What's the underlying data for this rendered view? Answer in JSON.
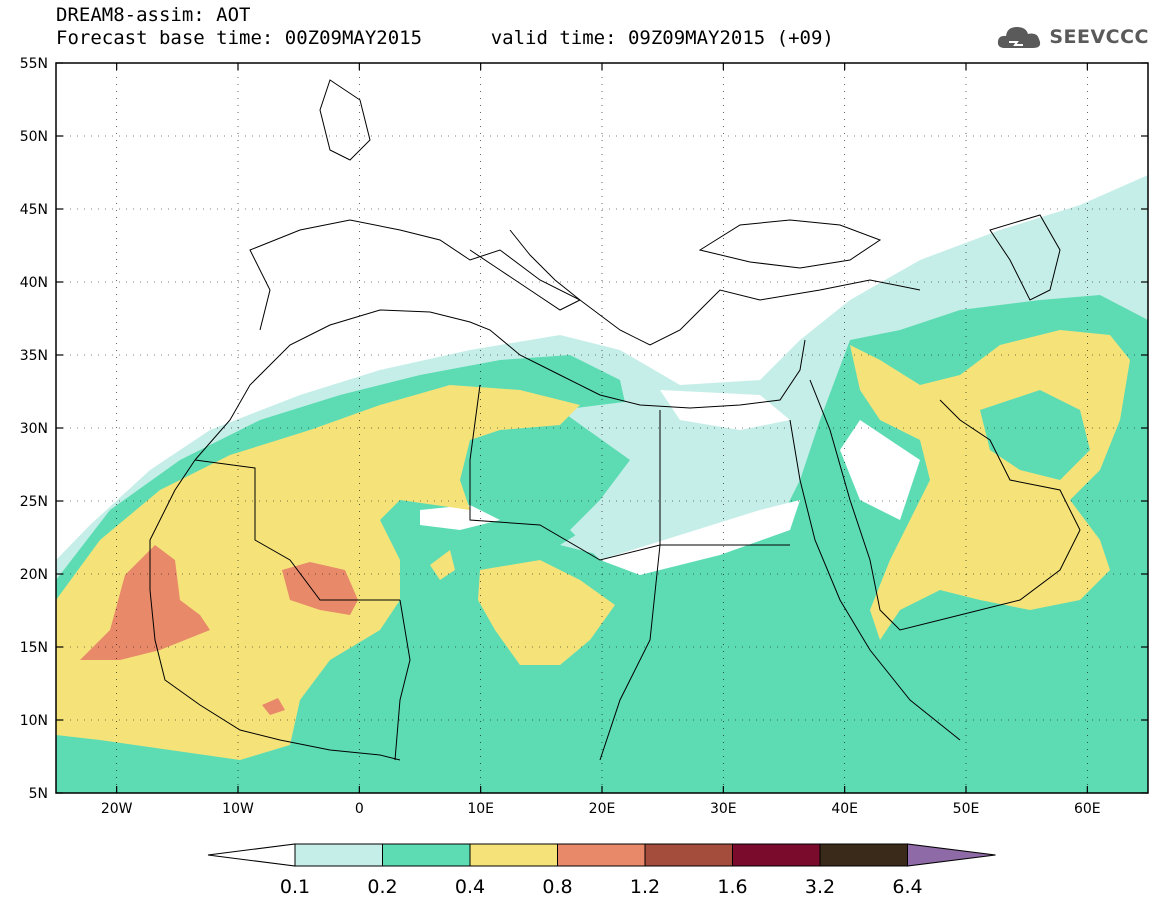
{
  "header": {
    "title": "DREAM8-assim: AOT",
    "base_time_label": "Forecast base time: 00Z09MAY2015",
    "valid_time_label": "valid time: 09Z09MAY2015 (+09)"
  },
  "logo": {
    "text": "SEEVCCC",
    "icon": "cloud-icon"
  },
  "map": {
    "lon_range": [
      -25,
      65
    ],
    "lat_range": [
      5,
      55
    ],
    "lat_ticks": [
      {
        "value": 55,
        "label": "55N"
      },
      {
        "value": 50,
        "label": "50N"
      },
      {
        "value": 45,
        "label": "45N"
      },
      {
        "value": 40,
        "label": "40N"
      },
      {
        "value": 35,
        "label": "35N"
      },
      {
        "value": 30,
        "label": "30N"
      },
      {
        "value": 25,
        "label": "25N"
      },
      {
        "value": 20,
        "label": "20N"
      },
      {
        "value": 15,
        "label": "15N"
      },
      {
        "value": 10,
        "label": "10N"
      },
      {
        "value": 5,
        "label": "5N"
      }
    ],
    "lon_ticks": [
      {
        "value": -20,
        "label": "20W"
      },
      {
        "value": -10,
        "label": "10W"
      },
      {
        "value": 0,
        "label": "0"
      },
      {
        "value": 10,
        "label": "10E"
      },
      {
        "value": 20,
        "label": "20E"
      },
      {
        "value": 30,
        "label": "30E"
      },
      {
        "value": 40,
        "label": "40E"
      },
      {
        "value": 50,
        "label": "50E"
      },
      {
        "value": 60,
        "label": "60E"
      }
    ]
  },
  "colorbar": {
    "levels": [
      "0.1",
      "0.2",
      "0.4",
      "0.8",
      "1.2",
      "1.6",
      "3.2",
      "6.4"
    ],
    "colors": [
      "#ffffff",
      "#c6eee8",
      "#5ddcb4",
      "#f5e37a",
      "#e8896a",
      "#a54d3c",
      "#7a0b2c",
      "#3a2a1a",
      "#8e6aa6"
    ]
  }
}
